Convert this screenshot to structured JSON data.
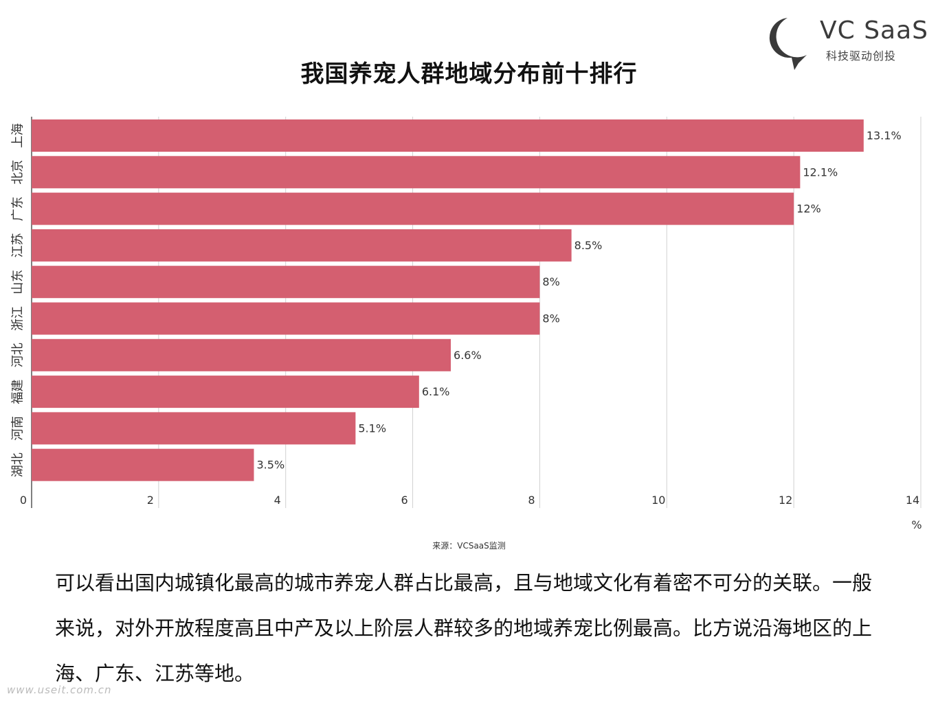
{
  "logo": {
    "brand": "VC SaaS",
    "tagline": "科技驱动创投",
    "colors": {
      "mark": "#3a3a3a"
    }
  },
  "chart_data": {
    "type": "bar",
    "orientation": "horizontal",
    "title": "我国养宠人群地域分布前十排行",
    "xlabel": "",
    "ylabel": "",
    "x_unit_label": "%",
    "categories": [
      "上海",
      "北京",
      "广东",
      "江苏",
      "山东",
      "浙江",
      "河北",
      "福建",
      "河南",
      "湖北"
    ],
    "values": [
      13.1,
      12.1,
      12,
      8.5,
      8,
      8,
      6.6,
      6.1,
      5.1,
      3.5
    ],
    "data_labels": [
      "13.1%",
      "12.1%",
      "12%",
      "8.5%",
      "8%",
      "8%",
      "6.6%",
      "6.1%",
      "5.1%",
      "3.5%"
    ],
    "xlim": [
      0,
      14
    ],
    "xticks": [
      0,
      2,
      4,
      6,
      8,
      10,
      12,
      14
    ],
    "grid": "vertical",
    "colors": {
      "bar": "#d45f70",
      "grid": "#d0d0d0",
      "axis": "#555555"
    }
  },
  "source": "来源：VCSaaS监测",
  "paragraph": "可以看出国内城镇化最高的城市养宠人群占比最高，且与地域文化有着密不可分的关联。一般来说，对外开放程度高且中产及以上阶层人群较多的地域养宠比例最高。比方说沿海地区的上海、广东、江苏等地。",
  "watermark": "www.useit.com.cn"
}
